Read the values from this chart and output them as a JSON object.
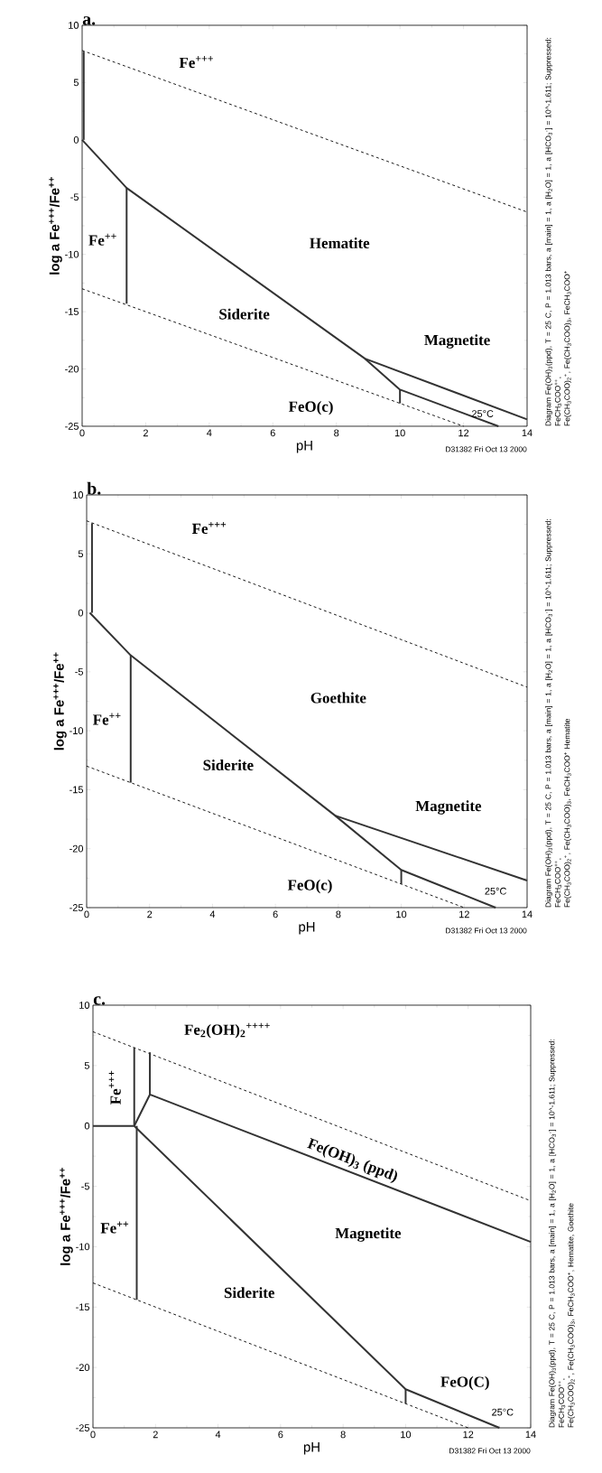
{
  "chart_data": [
    {
      "type": "line",
      "title": "a.",
      "xlabel": "pH",
      "ylabel": "log a Fe$^{+++}$/Fe$^{++}$",
      "xlim": [
        0,
        14
      ],
      "ylim": [
        -25,
        10
      ],
      "xticks": [
        0,
        2,
        4,
        6,
        8,
        10,
        12,
        14
      ],
      "yticks": [
        -25,
        -20,
        -15,
        -10,
        -5,
        0,
        5,
        10
      ],
      "marker": "none",
      "series": [
        {
          "color": "#000000",
          "line_style": "dashed",
          "x": [
            0,
            14
          ],
          "values": [
            7.8,
            -6.3
          ]
        },
        {
          "color": "#000000",
          "line_style": "dashed",
          "x": [
            0,
            12
          ],
          "values": [
            -13,
            -25
          ]
        },
        {
          "color": "#333333",
          "x": [
            0.05,
            0.05
          ],
          "values": [
            0,
            7.7
          ]
        },
        {
          "color": "#333333",
          "x": [
            0,
            1.4,
            8.9,
            10,
            13.1
          ],
          "values": [
            0,
            -4.2,
            -19.1,
            -21.8,
            -25
          ]
        },
        {
          "color": "#333333",
          "x": [
            1.4,
            1.4
          ],
          "values": [
            -4.2,
            -14.3
          ]
        },
        {
          "color": "#333333",
          "x": [
            8.9,
            14
          ],
          "values": [
            -19.1,
            -24.4
          ]
        },
        {
          "color": "#333333",
          "x": [
            10,
            10
          ],
          "values": [
            -21.8,
            -23
          ]
        }
      ],
      "annotations": [
        "D31382 Fri Oct 13 2000",
        "Diagram Fe(OH)$_{3}$(ppd), T = 25 C, P = 1.013 bars, a [main] = 1, a [H$_{2}$O] = 1, a [HCO$_{3}$$^{-}$] = 10^-1.611; Suppressed: FeCH$_{3}$COO$^{++}$,",
        "Fe(CH$_{3}$COO)$_{2}$$^{+}$, Fe(CH$_{3}$COO)$_{3}$, FeCH$_{3}$COO$^{+}$",
        "Fe$^{+++}$",
        "Hematite",
        "Fe$^{++}$",
        "Siderite",
        "Magnetite",
        "FeO(c)",
        "25°C"
      ]
    },
    {
      "type": "line",
      "title": "b.",
      "xlabel": "pH",
      "ylabel": "log a Fe$^{+++}$/Fe$^{++}$",
      "xlim": [
        0,
        14
      ],
      "ylim": [
        -25,
        10
      ],
      "xticks": [
        0,
        2,
        4,
        6,
        8,
        10,
        12,
        14
      ],
      "yticks": [
        -25,
        -20,
        -15,
        -10,
        -5,
        0,
        5,
        10
      ],
      "marker": "none",
      "series": [
        {
          "color": "#000000",
          "line_style": "dashed",
          "x": [
            0,
            14
          ],
          "values": [
            7.8,
            -6.3
          ]
        },
        {
          "color": "#000000",
          "line_style": "dashed",
          "x": [
            0,
            12
          ],
          "values": [
            -13,
            -25
          ]
        },
        {
          "color": "#333333",
          "x": [
            0.17,
            0.17
          ],
          "values": [
            0,
            7.6
          ]
        },
        {
          "color": "#333333",
          "x": [
            0.1,
            1.4,
            7.9,
            10,
            13
          ],
          "values": [
            0,
            -3.6,
            -17.2,
            -21.8,
            -25
          ]
        },
        {
          "color": "#333333",
          "x": [
            1.4,
            1.4
          ],
          "values": [
            -3.6,
            -14.4
          ]
        },
        {
          "color": "#333333",
          "x": [
            7.9,
            14
          ],
          "values": [
            -17.2,
            -22.7
          ]
        },
        {
          "color": "#333333",
          "x": [
            10,
            10
          ],
          "values": [
            -21.8,
            -23
          ]
        }
      ],
      "annotations": [
        "D31382 Fri Oct 13 2000",
        "Diagram Fe(OH)$_{3}$(ppd), T = 25 C, P = 1.013 bars, a [main] = 1, a [H$_{2}$O] = 1, a [HCO$_{3}$$^{-}$] = 10^-1.611; Suppressed: FeCH$_{3}$COO$^{++}$,",
        "Fe(CH$_{3}$COO)$_{2}$$^{+}$, Fe(CH$_{3}$COO)$_{3}$, FeCH$_{3}$COO$^{+}$ Hematite",
        "Fe$^{+++}$",
        "Goethite",
        "Fe$^{++}$",
        "Siderite",
        "Magnetite",
        "FeO(c)",
        "25°C"
      ]
    },
    {
      "type": "line",
      "title": "c.",
      "xlabel": "pH",
      "ylabel": "log a Fe$^{+++}$/Fe$^{++}$",
      "xlim": [
        0,
        14
      ],
      "ylim": [
        -25,
        10
      ],
      "xticks": [
        0,
        2,
        4,
        6,
        8,
        10,
        12,
        14
      ],
      "yticks": [
        -25,
        -20,
        -15,
        -10,
        -5,
        0,
        5,
        10
      ],
      "marker": "none",
      "series": [
        {
          "color": "#000000",
          "line_style": "dashed",
          "x": [
            0,
            14
          ],
          "values": [
            7.8,
            -6.2
          ]
        },
        {
          "color": "#000000",
          "line_style": "dashed",
          "x": [
            0,
            12
          ],
          "values": [
            -13,
            -25
          ]
        },
        {
          "color": "#333333",
          "x": [
            0,
            1.32
          ],
          "values": [
            0,
            0
          ]
        },
        {
          "color": "#333333",
          "x": [
            1.32,
            1.32
          ],
          "values": [
            0,
            6.5
          ]
        },
        {
          "color": "#333333",
          "x": [
            1.82,
            1.82
          ],
          "values": [
            2.6,
            6.1
          ]
        },
        {
          "color": "#333333",
          "x": [
            1.32,
            1.82,
            14
          ],
          "values": [
            0,
            2.6,
            -9.6
          ]
        },
        {
          "color": "#333333",
          "x": [
            1.4,
            1.4
          ],
          "values": [
            0,
            -14.4
          ]
        },
        {
          "color": "#333333",
          "x": [
            1.32,
            10,
            13
          ],
          "values": [
            0,
            -21.8,
            -25
          ]
        },
        {
          "color": "#333333",
          "x": [
            10,
            10
          ],
          "values": [
            -21.8,
            -23
          ]
        }
      ],
      "annotations": [
        "D31382 Fri Oct 13 2000",
        "Diagram Fe(OH)$_{3}$(ppd), T = 25 C, P = 1.013 bars, a [main] = 1, a [H$_{2}$O] = 1, a [HCO$_{3}$$^{-}$] = 10^-1.611; Suppressed: FeCH$_{3}$COO$^{++}$,",
        "Fe(CH$_{3}$COO)$_{2}$$^{+}$, Fe(CH$_{3}$COO)$_{3}$, FeCH$_{3}$COO$^{+}$, Hematite, Goethite",
        "Fe$_{2}$(OH)$_{2}$$^{++++}$",
        "Fe$^{+++}$",
        "Fe(OH)$_{3}$ (ppd)",
        "Magnetite",
        "Siderite",
        "Fe$^{++}$",
        "FeO(C)",
        "25°C"
      ]
    }
  ]
}
